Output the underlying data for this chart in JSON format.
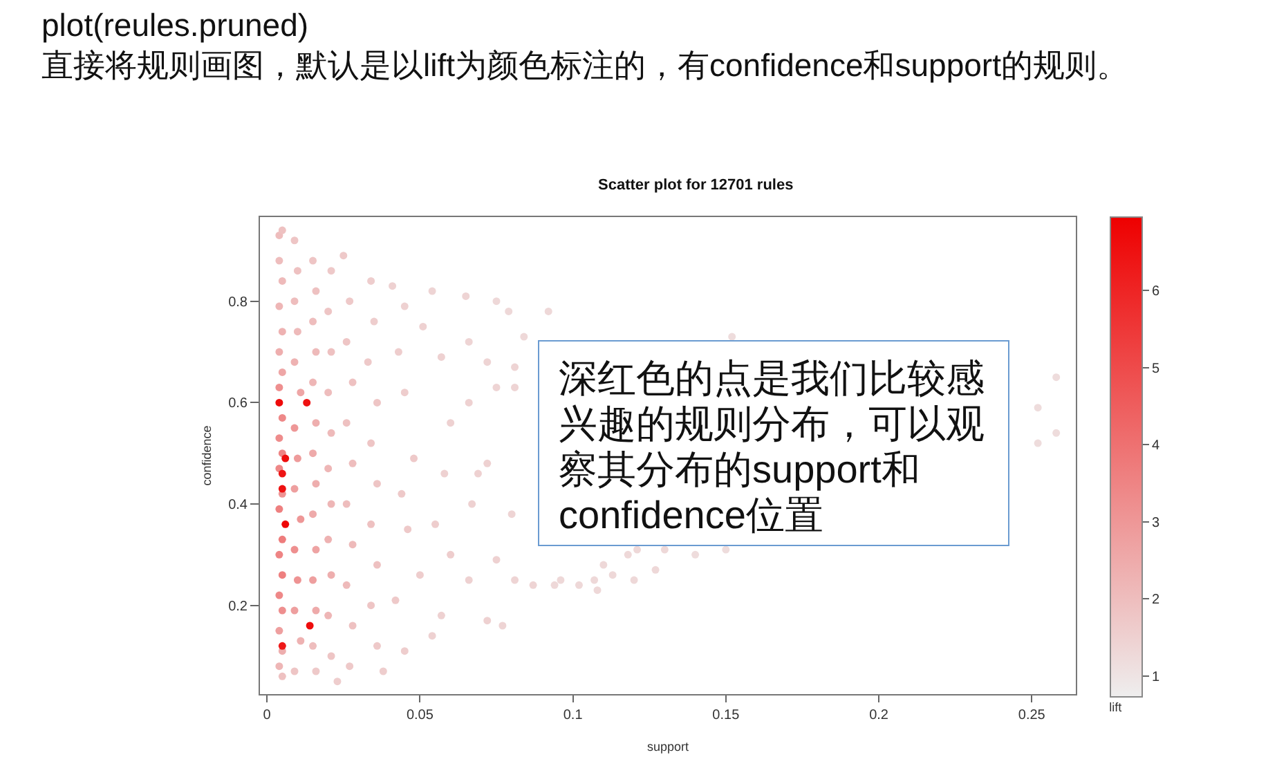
{
  "chart_data": {
    "type": "scatter",
    "title": "Scatter plot for 12701 rules",
    "xlabel": "support",
    "ylabel": "confidence",
    "clabel": "lift",
    "annotations": [
      "plot(reules.pruned)",
      "直接将规则画图，默认是以lift为颜色标注的，有confidence和support的规则。",
      "深红色的点是我们比较感兴趣的规则分布，可以观察其分布的support和confidence位置"
    ],
    "marker": "circle",
    "x": [
      0.004,
      0.005,
      0.004,
      0.005,
      0.004,
      0.005,
      0.004,
      0.005,
      0.004,
      0.005,
      0.004,
      0.005,
      0.004,
      0.005,
      0.004,
      0.005,
      0.004,
      0.005,
      0.004,
      0.005,
      0.004,
      0.005,
      0.004,
      0.005,
      0.009,
      0.01,
      0.009,
      0.01,
      0.009,
      0.011,
      0.009,
      0.01,
      0.009,
      0.011,
      0.009,
      0.01,
      0.009,
      0.011,
      0.009,
      0.015,
      0.016,
      0.015,
      0.016,
      0.015,
      0.016,
      0.015,
      0.016,
      0.015,
      0.016,
      0.015,
      0.016,
      0.015,
      0.016,
      0.021,
      0.02,
      0.021,
      0.02,
      0.021,
      0.02,
      0.021,
      0.02,
      0.021,
      0.02,
      0.021,
      0.023,
      0.025,
      0.027,
      0.026,
      0.028,
      0.026,
      0.028,
      0.026,
      0.028,
      0.026,
      0.028,
      0.027,
      0.034,
      0.035,
      0.033,
      0.036,
      0.034,
      0.036,
      0.034,
      0.036,
      0.034,
      0.036,
      0.038,
      0.041,
      0.045,
      0.043,
      0.045,
      0.048,
      0.044,
      0.046,
      0.042,
      0.045,
      0.05,
      0.051,
      0.054,
      0.057,
      0.065,
      0.066,
      0.072,
      0.075,
      0.079,
      0.081,
      0.084,
      0.066,
      0.075,
      0.081,
      0.06,
      0.072,
      0.058,
      0.069,
      0.067,
      0.08,
      0.075,
      0.066,
      0.081,
      0.087,
      0.057,
      0.054,
      0.072,
      0.077,
      0.055,
      0.06,
      0.092,
      0.152,
      0.094,
      0.096,
      0.102,
      0.107,
      0.108,
      0.11,
      0.113,
      0.118,
      0.12,
      0.121,
      0.127,
      0.13,
      0.14,
      0.15,
      0.258,
      0.252,
      0.258,
      0.252,
      0.004,
      0.013,
      0.006,
      0.005,
      0.005,
      0.006,
      0.014,
      0.005
    ],
    "values": [
      0.93,
      0.94,
      0.88,
      0.84,
      0.79,
      0.74,
      0.7,
      0.66,
      0.63,
      0.57,
      0.53,
      0.5,
      0.47,
      0.42,
      0.39,
      0.33,
      0.3,
      0.26,
      0.22,
      0.19,
      0.15,
      0.11,
      0.08,
      0.06,
      0.92,
      0.86,
      0.8,
      0.74,
      0.68,
      0.62,
      0.55,
      0.49,
      0.43,
      0.37,
      0.31,
      0.25,
      0.19,
      0.13,
      0.07,
      0.88,
      0.82,
      0.76,
      0.7,
      0.64,
      0.56,
      0.5,
      0.44,
      0.38,
      0.31,
      0.25,
      0.19,
      0.12,
      0.07,
      0.86,
      0.78,
      0.7,
      0.62,
      0.54,
      0.47,
      0.4,
      0.33,
      0.26,
      0.18,
      0.1,
      0.05,
      0.89,
      0.8,
      0.72,
      0.64,
      0.56,
      0.48,
      0.4,
      0.32,
      0.24,
      0.16,
      0.08,
      0.84,
      0.76,
      0.68,
      0.6,
      0.52,
      0.44,
      0.36,
      0.28,
      0.2,
      0.12,
      0.07,
      0.83,
      0.79,
      0.7,
      0.62,
      0.49,
      0.42,
      0.35,
      0.21,
      0.11,
      0.26,
      0.75,
      0.82,
      0.69,
      0.81,
      0.72,
      0.68,
      0.8,
      0.78,
      0.67,
      0.73,
      0.6,
      0.63,
      0.63,
      0.56,
      0.48,
      0.46,
      0.46,
      0.4,
      0.38,
      0.29,
      0.25,
      0.25,
      0.24,
      0.18,
      0.14,
      0.17,
      0.16,
      0.36,
      0.3,
      0.78,
      0.73,
      0.24,
      0.25,
      0.24,
      0.25,
      0.23,
      0.28,
      0.26,
      0.3,
      0.25,
      0.31,
      0.27,
      0.31,
      0.3,
      0.31,
      0.65,
      0.59,
      0.54,
      0.52,
      0.6,
      0.6,
      0.49,
      0.46,
      0.43,
      0.36,
      0.16,
      0.12
    ],
    "cvalues": [
      2.0,
      1.9,
      2.0,
      2.1,
      2.2,
      2.3,
      2.4,
      2.6,
      3.2,
      3.4,
      3.3,
      3.5,
      3.4,
      3.1,
      3.6,
      3.7,
      3.5,
      3.6,
      3.4,
      3.2,
      2.8,
      2.4,
      2.2,
      1.9,
      1.8,
      1.9,
      2.0,
      2.1,
      2.3,
      2.6,
      3.0,
      2.9,
      2.8,
      3.0,
      3.2,
      3.1,
      2.8,
      2.3,
      1.8,
      1.8,
      1.9,
      2.0,
      2.1,
      2.2,
      2.4,
      2.5,
      2.4,
      2.5,
      2.7,
      2.8,
      2.5,
      2.0,
      1.7,
      1.7,
      1.8,
      1.9,
      2.0,
      2.1,
      2.2,
      2.2,
      2.3,
      2.4,
      2.2,
      1.8,
      1.6,
      1.7,
      1.7,
      1.8,
      1.9,
      1.9,
      2.0,
      2.0,
      2.1,
      2.1,
      1.9,
      1.7,
      1.6,
      1.6,
      1.7,
      1.8,
      1.8,
      1.8,
      1.9,
      1.9,
      1.8,
      1.7,
      1.6,
      1.5,
      1.5,
      1.6,
      1.6,
      1.7,
      1.7,
      1.7,
      1.7,
      1.6,
      1.6,
      1.5,
      1.4,
      1.5,
      1.4,
      1.4,
      1.4,
      1.3,
      1.3,
      1.4,
      1.3,
      1.5,
      1.4,
      1.4,
      1.5,
      1.5,
      1.5,
      1.5,
      1.5,
      1.4,
      1.5,
      1.5,
      1.4,
      1.4,
      1.5,
      1.5,
      1.5,
      1.4,
      1.6,
      1.6,
      1.3,
      1.2,
      1.3,
      1.3,
      1.3,
      1.3,
      1.3,
      1.3,
      1.3,
      1.3,
      1.3,
      1.3,
      1.3,
      1.3,
      1.2,
      1.2,
      1.2,
      1.2,
      1.2,
      1.2,
      6.7,
      6.5,
      6.6,
      6.4,
      6.5,
      6.8,
      6.6,
      6.3
    ],
    "xlim": [
      -0.0023,
      0.2644
    ],
    "xticks": [
      0,
      0.05,
      0.1,
      0.15,
      0.2,
      0.25
    ],
    "ylim": [
      0.025,
      0.966
    ],
    "yticks": [
      0.2,
      0.4,
      0.6,
      0.8
    ],
    "clim": [
      0.73,
      6.95
    ],
    "cticks": [
      1,
      2,
      3,
      4,
      5,
      6
    ]
  }
}
